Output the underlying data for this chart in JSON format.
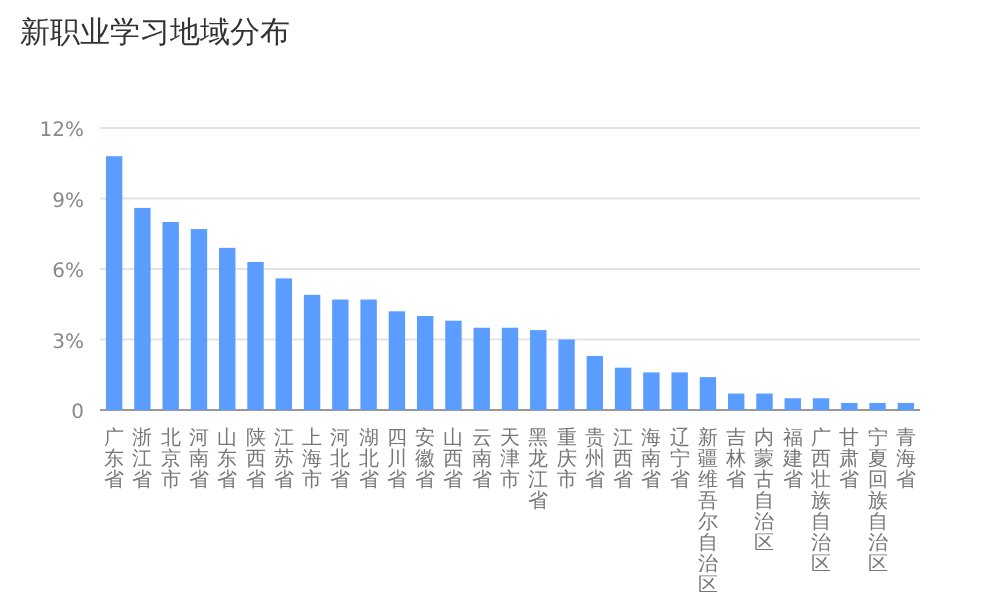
{
  "chart_data": {
    "type": "bar",
    "title": "新职业学习地域分布",
    "categories": [
      "广东省",
      "浙江省",
      "北京市",
      "河南省",
      "山东省",
      "陕西省",
      "江苏省",
      "上海市",
      "河北省",
      "湖北省",
      "四川省",
      "安徽省",
      "山西省",
      "云南省",
      "天津市",
      "黑龙江省",
      "重庆市",
      "贵州省",
      "江西省",
      "海南省",
      "辽宁省",
      "新疆维吾尔自治区",
      "吉林省",
      "内蒙古自治区",
      "福建省",
      "广西壮族自治区",
      "甘肃省",
      "宁夏回族自治区",
      "青海省"
    ],
    "values": [
      10.8,
      8.6,
      8.0,
      7.7,
      6.9,
      6.3,
      5.6,
      4.9,
      4.7,
      4.7,
      4.2,
      4.0,
      3.8,
      3.5,
      3.5,
      3.4,
      3.0,
      2.3,
      1.8,
      1.6,
      1.6,
      1.4,
      0.7,
      0.7,
      0.5,
      0.5,
      0.3,
      0.3,
      0.3
    ],
    "color": "#5b9cff",
    "ylim": [
      0,
      12
    ],
    "yticks": [
      {
        "value": 0,
        "label": "0"
      },
      {
        "value": 3,
        "label": "3%"
      },
      {
        "value": 6,
        "label": "6%"
      },
      {
        "value": 9,
        "label": "9%"
      },
      {
        "value": 12,
        "label": "12%"
      }
    ],
    "grid": "y"
  }
}
